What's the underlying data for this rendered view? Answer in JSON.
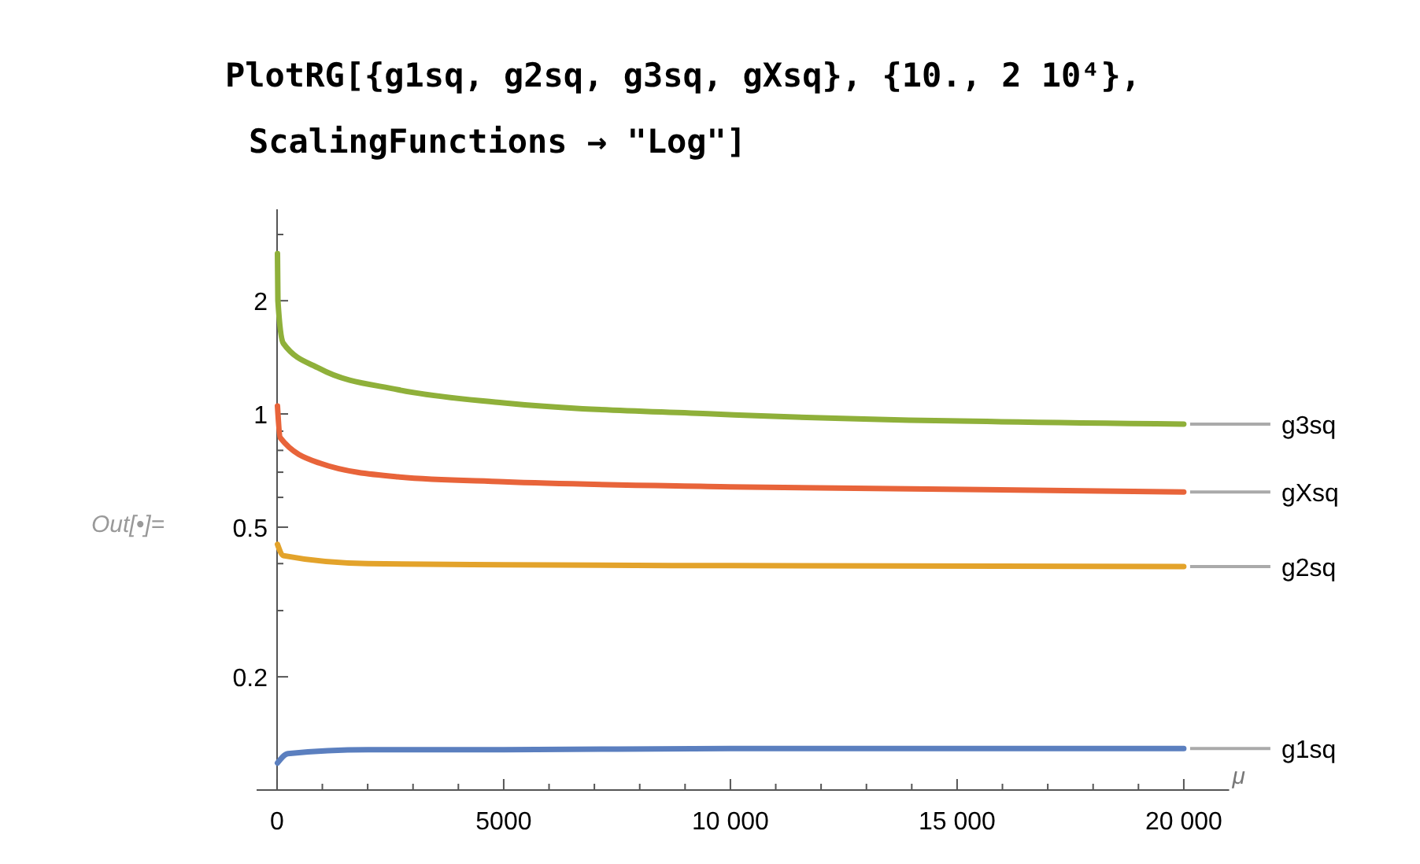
{
  "chart_data": {
    "type": "line",
    "title": "PlotRG[{g1sq, g2sq, g3sq, gXsq}, {10., 2 10⁴},",
    "subtitle": "ScalingFunctions → \"Log\"]",
    "xlabel": "μ",
    "annotations": [
      "Out[•]="
    ],
    "log": "y",
    "grid": false,
    "legend": false,
    "marker": "none",
    "line_style": "solid",
    "xlim": [
      -450,
      21000
    ],
    "ylim": [
      0.1,
      3.5
    ],
    "xticks": [
      0,
      {
        "value": 1000,
        "label": null
      },
      {
        "value": 2000,
        "label": null
      },
      {
        "value": 3000,
        "label": null
      },
      {
        "value": 4000,
        "label": null
      },
      5000,
      {
        "value": 6000,
        "label": null
      },
      {
        "value": 7000,
        "label": null
      },
      {
        "value": 8000,
        "label": null
      },
      {
        "value": 9000,
        "label": null
      },
      {
        "value": 10000,
        "label": "10 000"
      },
      {
        "value": 11000,
        "label": null
      },
      {
        "value": 12000,
        "label": null
      },
      {
        "value": 13000,
        "label": null
      },
      {
        "value": 14000,
        "label": null
      },
      {
        "value": 15000,
        "label": "15 000"
      },
      {
        "value": 16000,
        "label": null
      },
      {
        "value": 17000,
        "label": null
      },
      {
        "value": 18000,
        "label": null
      },
      {
        "value": 19000,
        "label": null
      },
      {
        "value": 20000,
        "label": "20 000"
      }
    ],
    "yticks": [
      0.2,
      {
        "value": 0.3,
        "label": null
      },
      {
        "value": 0.4,
        "label": null
      },
      0.5,
      {
        "value": 0.6,
        "label": null
      },
      {
        "value": 0.7,
        "label": null
      },
      {
        "value": 0.8,
        "label": null
      },
      {
        "value": 0.9,
        "label": null
      },
      1,
      2,
      {
        "value": 3,
        "label": null
      }
    ],
    "series": [
      {
        "name": "g1sq",
        "color": "#5b7fbf",
        "x": [
          10,
          240,
          2000,
          5000,
          10000,
          20000
        ],
        "values": [
          0.118,
          0.125,
          0.128,
          0.128,
          0.129,
          0.129
        ]
      },
      {
        "name": "g2sq",
        "color": "#e3a32b",
        "x": [
          10,
          140,
          2000,
          5000,
          10000,
          20000
        ],
        "values": [
          0.45,
          0.42,
          0.4,
          0.397,
          0.395,
          0.393
        ]
      },
      {
        "name": "g3sq",
        "color": "#8fb03a",
        "x": [
          10,
          20,
          140,
          940,
          2670,
          5000,
          9600,
          20000
        ],
        "values": [
          2.67,
          2,
          1.54,
          1.32,
          1.16,
          1.07,
          1,
          0.94
        ]
      },
      {
        "name": "gXsq",
        "color": "#e8643a",
        "x": [
          10,
          70,
          940,
          2670,
          5000,
          10000,
          20000
        ],
        "values": [
          1.05,
          0.865,
          0.74,
          0.68,
          0.66,
          0.64,
          0.62
        ]
      }
    ]
  }
}
